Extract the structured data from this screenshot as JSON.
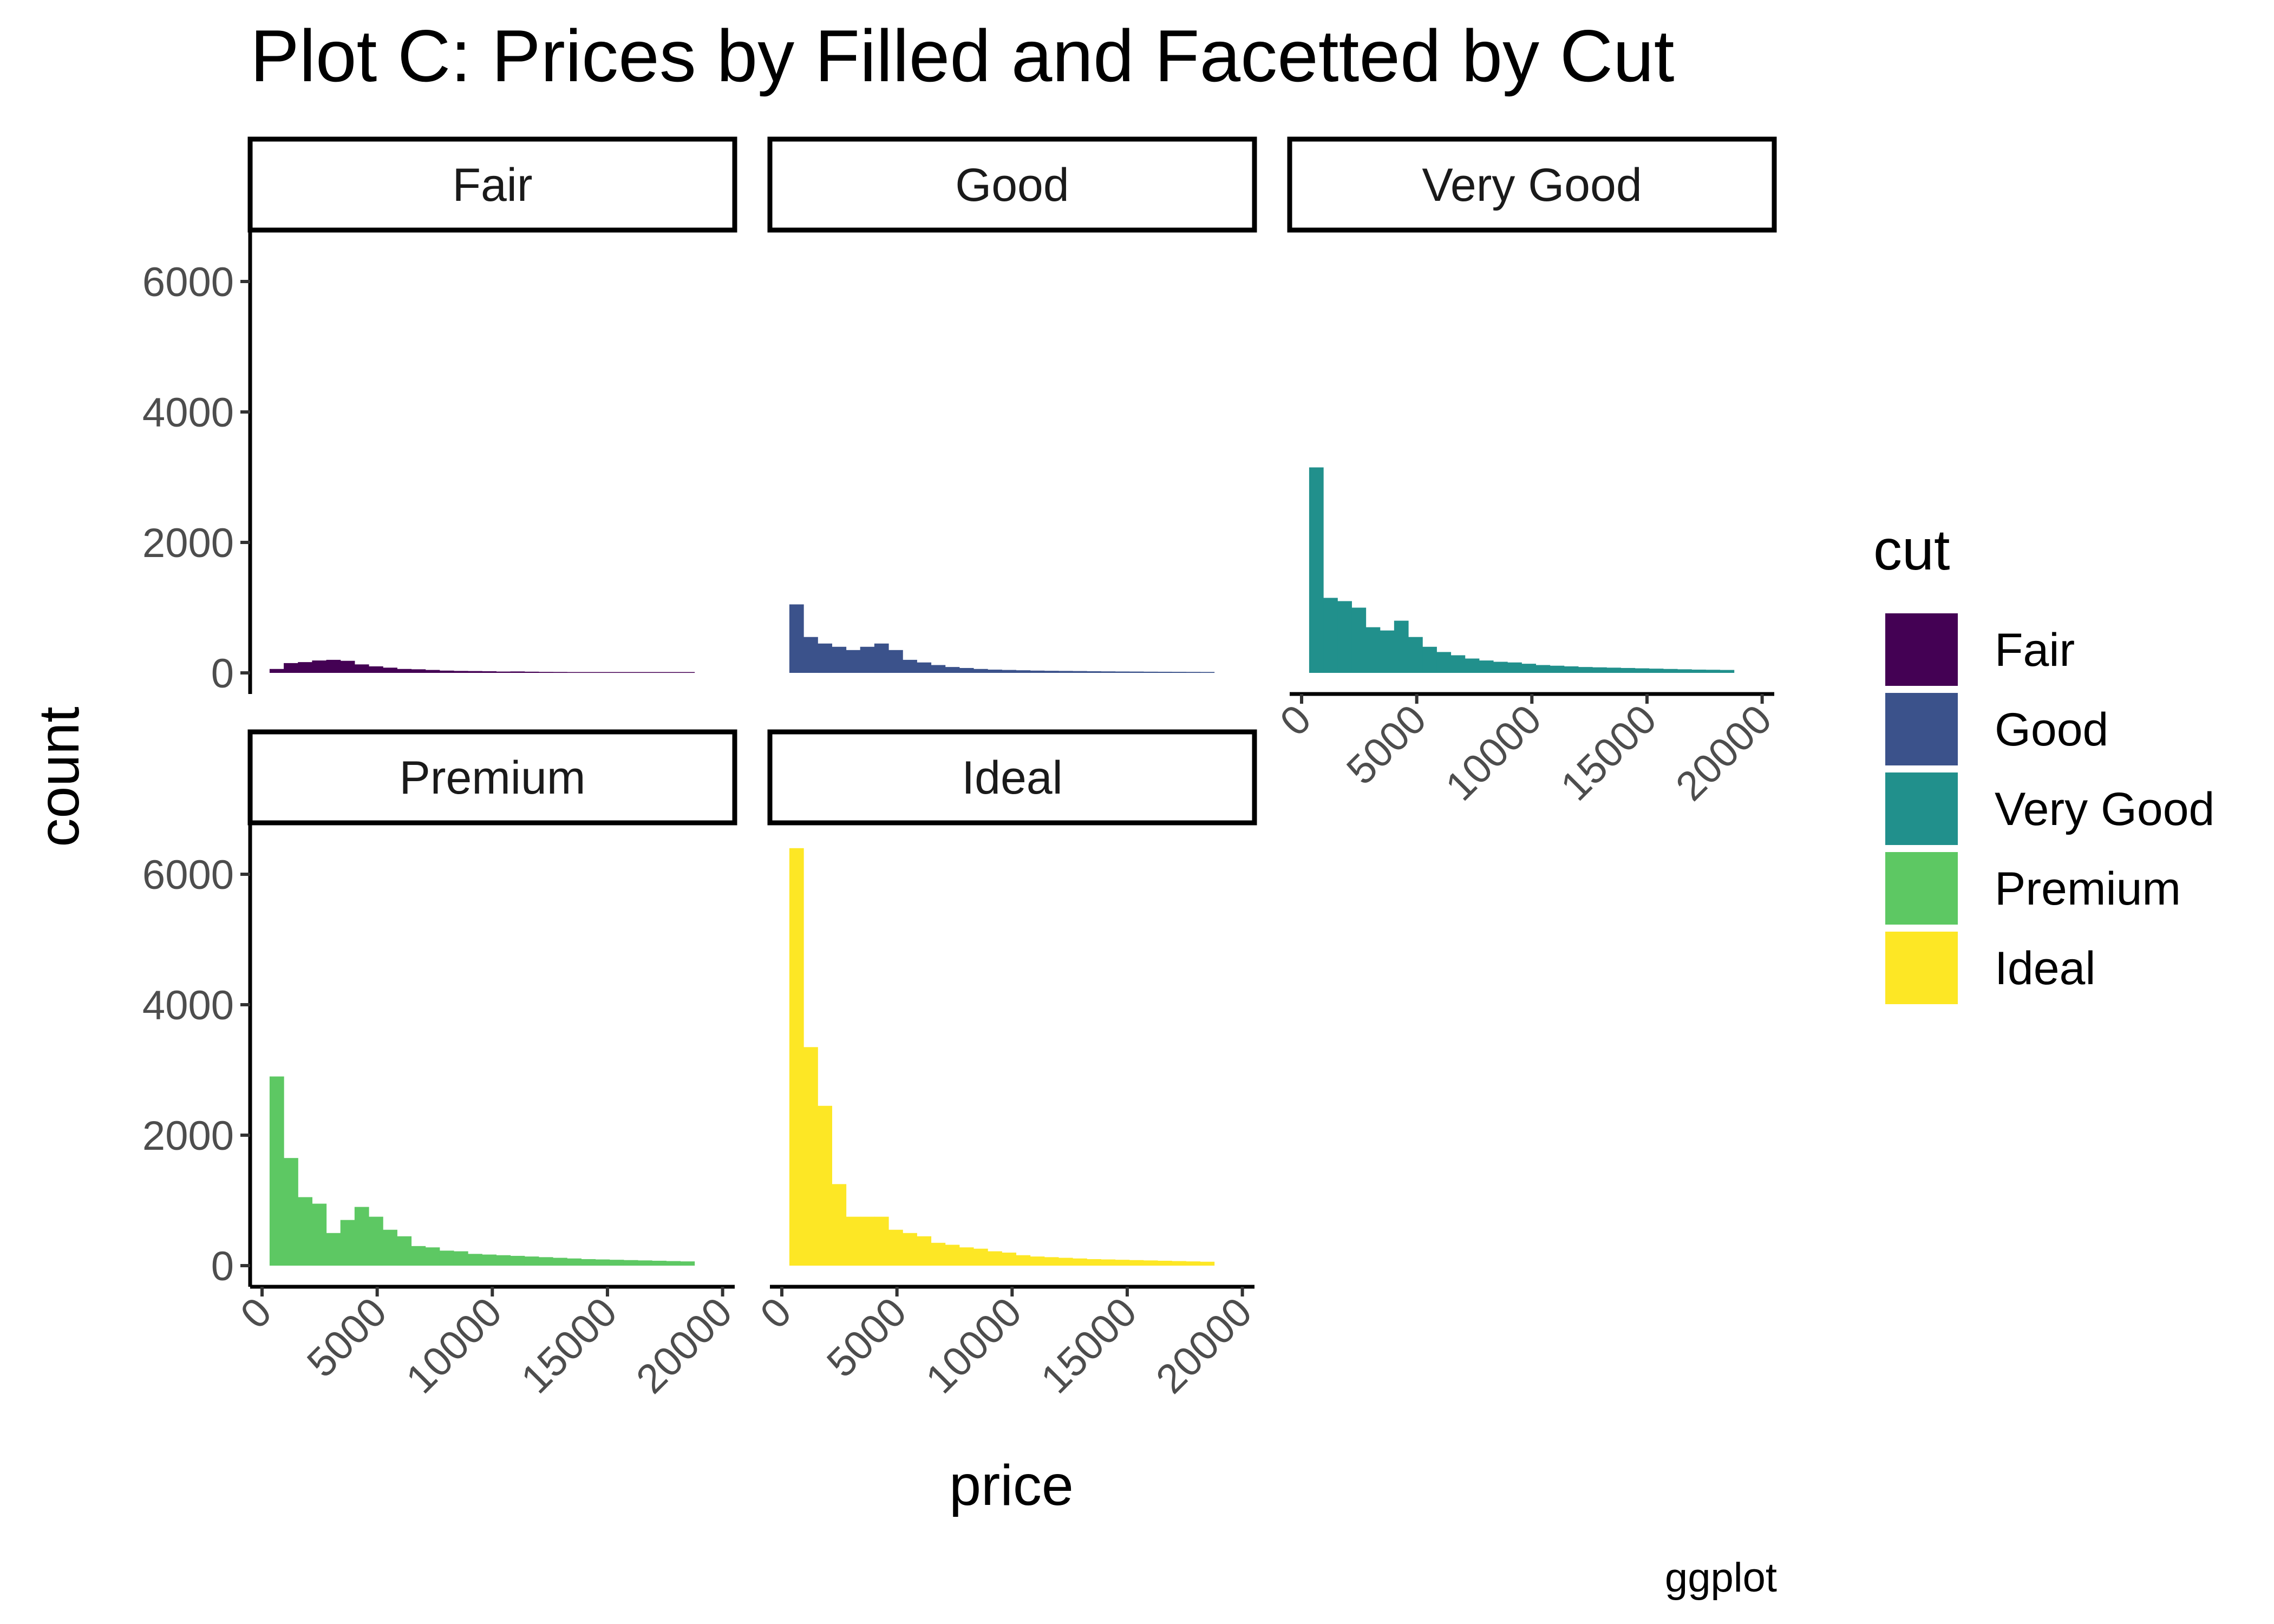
{
  "chart_data": {
    "type": "bar",
    "chart_kind": "histogram",
    "title": "Plot C: Prices by Filled and Facetted by Cut",
    "xlabel": "price",
    "ylabel": "count",
    "caption": "ggplot",
    "xlim": [
      0,
      20000
    ],
    "ylim": [
      0,
      6500
    ],
    "x_ticks": [
      "0",
      "5000",
      "10000",
      "15000",
      "20000"
    ],
    "y_ticks": [
      "0",
      "2000",
      "4000",
      "6000"
    ],
    "x_tick_values": [
      0,
      5000,
      10000,
      15000,
      20000
    ],
    "y_tick_values": [
      0,
      2000,
      4000,
      6000
    ],
    "bin_width": 615,
    "bin_start": 327,
    "grid": false,
    "legend": {
      "title": "cut",
      "position": "right",
      "entries": [
        {
          "label": "Fair",
          "color": "#440154"
        },
        {
          "label": "Good",
          "color": "#3B528B"
        },
        {
          "label": "Very Good",
          "color": "#21908C"
        },
        {
          "label": "Premium",
          "color": "#5DC863"
        },
        {
          "label": "Ideal",
          "color": "#FDE725"
        }
      ]
    },
    "series": [
      {
        "name": "Fair",
        "color": "#440154",
        "values": [
          60,
          150,
          165,
          190,
          200,
          185,
          130,
          100,
          80,
          60,
          55,
          45,
          35,
          30,
          28,
          25,
          20,
          22,
          18,
          15,
          14,
          12,
          11,
          10,
          10,
          9,
          8,
          8,
          7,
          6
        ]
      },
      {
        "name": "Good",
        "color": "#3B528B",
        "values": [
          1050,
          550,
          450,
          400,
          350,
          400,
          450,
          350,
          200,
          160,
          120,
          90,
          75,
          60,
          50,
          45,
          40,
          35,
          32,
          30,
          28,
          25,
          23,
          21,
          20,
          18,
          17,
          16,
          15,
          14
        ]
      },
      {
        "name": "Very Good",
        "color": "#21908C",
        "values": [
          3150,
          1150,
          1100,
          1000,
          700,
          650,
          800,
          550,
          400,
          320,
          270,
          220,
          190,
          170,
          160,
          140,
          120,
          110,
          100,
          90,
          85,
          80,
          75,
          70,
          65,
          60,
          55,
          50,
          48,
          45
        ]
      },
      {
        "name": "Premium",
        "color": "#5DC863",
        "values": [
          2900,
          1650,
          1050,
          950,
          500,
          700,
          900,
          750,
          550,
          450,
          300,
          280,
          230,
          220,
          180,
          170,
          160,
          150,
          140,
          130,
          120,
          110,
          100,
          95,
          90,
          85,
          80,
          75,
          70,
          65
        ]
      },
      {
        "name": "Ideal",
        "color": "#FDE725",
        "values": [
          6400,
          3350,
          2450,
          1250,
          750,
          750,
          750,
          550,
          500,
          450,
          350,
          320,
          280,
          260,
          220,
          200,
          160,
          140,
          130,
          120,
          110,
          100,
          95,
          90,
          85,
          80,
          75,
          70,
          65,
          60
        ]
      }
    ]
  }
}
